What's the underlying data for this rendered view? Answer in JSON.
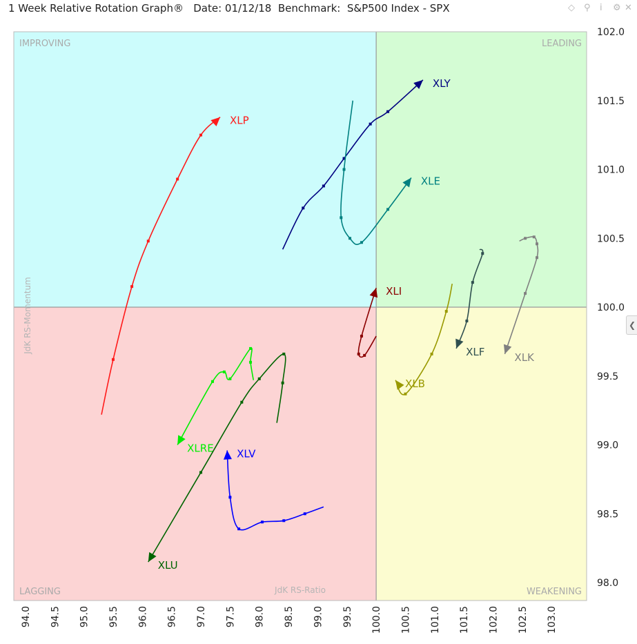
{
  "header": {
    "title": "1 Week Relative Rotation Graph®   Date: 01/12/18  Benchmark:  S&P500 Index - SPX",
    "icons": [
      "diamond-icon",
      "pin-icon",
      "info-icon",
      "settings-icon",
      "close-icon"
    ]
  },
  "quadrants": {
    "improving": "IMPROVING",
    "leading": "LEADING",
    "lagging": "LAGGING",
    "weakening": "WEAKENING",
    "colors": {
      "improving": "#ccfcfc",
      "leading": "#d4fcd4",
      "lagging": "#fcd4d4",
      "weakening": "#fcfcd0"
    }
  },
  "chart_data": {
    "type": "line",
    "xlabel": "JdK RS-Ratio",
    "ylabel": "JdK RS-Momentum",
    "xlim": [
      93.8,
      103.6
    ],
    "ylim": [
      97.87,
      102.0
    ],
    "x_ticks": [
      "94.0",
      "94.5",
      "95.0",
      "95.5",
      "96.0",
      "96.5",
      "97.0",
      "97.5",
      "98.0",
      "98.5",
      "99.0",
      "99.5",
      "100.0",
      "100.5",
      "101.0",
      "101.5",
      "102.0",
      "102.5",
      "103.0"
    ],
    "y_ticks": [
      "98.0",
      "98.5",
      "99.0",
      "99.5",
      "100.0",
      "100.5",
      "101.0",
      "101.5",
      "102.0"
    ],
    "series": [
      {
        "name": "XLP",
        "color": "#ff1a1a",
        "points": [
          [
            95.3,
            99.22
          ],
          [
            95.5,
            99.62
          ],
          [
            95.82,
            100.15
          ],
          [
            96.1,
            100.48
          ],
          [
            96.6,
            100.93
          ],
          [
            97.0,
            101.25
          ],
          [
            97.33,
            101.38
          ]
        ]
      },
      {
        "name": "XLY",
        "color": "#000080",
        "points": [
          [
            98.4,
            100.42
          ],
          [
            98.75,
            100.72
          ],
          [
            99.1,
            100.88
          ],
          [
            99.45,
            101.08
          ],
          [
            99.9,
            101.33
          ],
          [
            100.2,
            101.42
          ],
          [
            100.8,
            101.65
          ]
        ]
      },
      {
        "name": "XLE",
        "color": "#008080",
        "points": [
          [
            99.6,
            101.5
          ],
          [
            99.45,
            101.0
          ],
          [
            99.4,
            100.65
          ],
          [
            99.55,
            100.5
          ],
          [
            99.75,
            100.47
          ],
          [
            100.2,
            100.71
          ],
          [
            100.6,
            100.94
          ]
        ]
      },
      {
        "name": "XLI",
        "color": "#8b0000",
        "points": [
          [
            100.0,
            99.79
          ],
          [
            99.8,
            99.65
          ],
          [
            99.7,
            99.66
          ],
          [
            99.75,
            99.79
          ],
          [
            100.0,
            100.14
          ]
        ]
      },
      {
        "name": "XLF",
        "color": "#2f4f4f",
        "points": [
          [
            101.77,
            100.42
          ],
          [
            101.82,
            100.39
          ],
          [
            101.65,
            100.18
          ],
          [
            101.55,
            99.9
          ],
          [
            101.37,
            99.7
          ]
        ]
      },
      {
        "name": "XLK",
        "color": "#808080",
        "points": [
          [
            102.45,
            100.48
          ],
          [
            102.55,
            100.5
          ],
          [
            102.7,
            100.51
          ],
          [
            102.75,
            100.46
          ],
          [
            102.75,
            100.36
          ],
          [
            102.55,
            100.1
          ],
          [
            102.2,
            99.66
          ]
        ]
      },
      {
        "name": "XLB",
        "color": "#999900",
        "points": [
          [
            101.3,
            100.17
          ],
          [
            101.2,
            99.97
          ],
          [
            100.95,
            99.66
          ],
          [
            100.5,
            99.37
          ],
          [
            100.33,
            99.47
          ]
        ]
      },
      {
        "name": "XLRE",
        "color": "#00ee00",
        "points": [
          [
            97.9,
            99.47
          ],
          [
            97.85,
            99.6
          ],
          [
            97.85,
            99.7
          ],
          [
            97.5,
            99.48
          ],
          [
            97.4,
            99.53
          ],
          [
            97.2,
            99.46
          ],
          [
            96.6,
            99.0
          ]
        ]
      },
      {
        "name": "XLV",
        "color": "#0000ff",
        "points": [
          [
            99.1,
            98.55
          ],
          [
            98.78,
            98.5
          ],
          [
            98.42,
            98.45
          ],
          [
            98.05,
            98.44
          ],
          [
            97.65,
            98.39
          ],
          [
            97.5,
            98.62
          ],
          [
            97.45,
            98.96
          ]
        ]
      },
      {
        "name": "XLU",
        "color": "#006400",
        "points": [
          [
            98.3,
            99.16
          ],
          [
            98.4,
            99.45
          ],
          [
            98.42,
            99.66
          ],
          [
            98.0,
            99.48
          ],
          [
            97.7,
            99.31
          ],
          [
            97.0,
            98.8
          ],
          [
            96.1,
            98.15
          ]
        ]
      }
    ]
  }
}
